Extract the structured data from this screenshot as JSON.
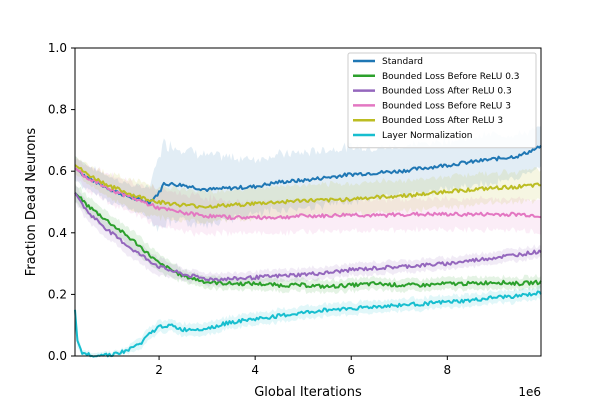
{
  "chart_data": {
    "type": "line",
    "xlabel": "Global Iterations",
    "ylabel": "Fraction Dead Neurons",
    "x_offset_label": "1e6",
    "xlim": [
      0.25,
      9.95
    ],
    "ylim": [
      0.0,
      1.0
    ],
    "xticks": [
      2,
      4,
      6,
      8
    ],
    "yticks": [
      0.0,
      0.2,
      0.4,
      0.6,
      0.8,
      1.0
    ],
    "xtick_labels": [
      "2",
      "4",
      "6",
      "8"
    ],
    "ytick_labels": [
      "0.0",
      "0.2",
      "0.4",
      "0.6",
      "0.8",
      "1.0"
    ],
    "grid": false,
    "legend_position": "top-right",
    "series": [
      {
        "name": "Standard",
        "color": "#1f77b4",
        "x": [
          0.25,
          0.5,
          1.0,
          1.5,
          1.8,
          2.0,
          2.1,
          2.5,
          3.0,
          3.5,
          4.0,
          4.5,
          5.0,
          5.5,
          6.0,
          6.5,
          7.0,
          7.5,
          8.0,
          8.5,
          9.0,
          9.5,
          9.95
        ],
        "y": [
          0.61,
          0.58,
          0.54,
          0.51,
          0.5,
          0.53,
          0.56,
          0.555,
          0.54,
          0.545,
          0.55,
          0.565,
          0.57,
          0.58,
          0.59,
          0.595,
          0.6,
          0.61,
          0.62,
          0.63,
          0.64,
          0.65,
          0.68
        ],
        "band": [
          0.04,
          0.04,
          0.04,
          0.04,
          0.05,
          0.12,
          0.13,
          0.12,
          0.11,
          0.1,
          0.09,
          0.09,
          0.09,
          0.09,
          0.09,
          0.08,
          0.08,
          0.08,
          0.08,
          0.08,
          0.08,
          0.07,
          0.06
        ]
      },
      {
        "name": "Bounded Loss Before ReLU 0.3",
        "color": "#2ca02c",
        "x": [
          0.25,
          0.5,
          1.0,
          1.5,
          2.0,
          2.5,
          3.0,
          3.5,
          4.0,
          4.5,
          5.0,
          5.5,
          6.0,
          6.5,
          7.0,
          7.5,
          8.0,
          8.5,
          9.0,
          9.5,
          9.95
        ],
        "y": [
          0.53,
          0.49,
          0.43,
          0.37,
          0.3,
          0.26,
          0.24,
          0.235,
          0.235,
          0.23,
          0.23,
          0.225,
          0.23,
          0.235,
          0.23,
          0.23,
          0.235,
          0.235,
          0.24,
          0.235,
          0.24
        ],
        "band": [
          0.03,
          0.03,
          0.03,
          0.03,
          0.03,
          0.02,
          0.02,
          0.02,
          0.02,
          0.02,
          0.02,
          0.02,
          0.02,
          0.02,
          0.02,
          0.02,
          0.02,
          0.02,
          0.02,
          0.02,
          0.02
        ]
      },
      {
        "name": "Bounded Loss After ReLU 0.3",
        "color": "#9467bd",
        "x": [
          0.25,
          0.5,
          1.0,
          1.5,
          2.0,
          2.5,
          3.0,
          3.5,
          4.0,
          4.5,
          5.0,
          5.5,
          6.0,
          6.5,
          7.0,
          7.5,
          8.0,
          8.5,
          9.0,
          9.5,
          9.95
        ],
        "y": [
          0.53,
          0.47,
          0.4,
          0.34,
          0.29,
          0.265,
          0.25,
          0.25,
          0.255,
          0.26,
          0.265,
          0.27,
          0.28,
          0.285,
          0.29,
          0.295,
          0.3,
          0.31,
          0.32,
          0.33,
          0.34
        ],
        "band": [
          0.03,
          0.03,
          0.03,
          0.03,
          0.03,
          0.02,
          0.02,
          0.02,
          0.02,
          0.02,
          0.02,
          0.02,
          0.02,
          0.02,
          0.02,
          0.02,
          0.02,
          0.02,
          0.02,
          0.02,
          0.02
        ]
      },
      {
        "name": "Bounded Loss Before ReLU 3",
        "color": "#e377c2",
        "x": [
          0.25,
          0.5,
          1.0,
          1.5,
          2.0,
          2.5,
          3.0,
          3.5,
          4.0,
          4.5,
          5.0,
          5.5,
          6.0,
          6.5,
          7.0,
          7.5,
          8.0,
          8.5,
          9.0,
          9.5,
          9.95
        ],
        "y": [
          0.61,
          0.58,
          0.54,
          0.51,
          0.48,
          0.465,
          0.455,
          0.45,
          0.45,
          0.45,
          0.455,
          0.455,
          0.46,
          0.455,
          0.46,
          0.46,
          0.46,
          0.46,
          0.46,
          0.46,
          0.455
        ],
        "band": [
          0.03,
          0.04,
          0.05,
          0.05,
          0.06,
          0.06,
          0.06,
          0.05,
          0.05,
          0.05,
          0.05,
          0.05,
          0.05,
          0.05,
          0.05,
          0.05,
          0.05,
          0.05,
          0.05,
          0.05,
          0.05
        ]
      },
      {
        "name": "Bounded Loss After ReLU 3",
        "color": "#bcbd22",
        "x": [
          0.25,
          0.5,
          1.0,
          1.5,
          2.0,
          2.5,
          3.0,
          3.5,
          4.0,
          4.5,
          5.0,
          5.5,
          6.0,
          6.5,
          7.0,
          7.5,
          8.0,
          8.5,
          9.0,
          9.5,
          9.95
        ],
        "y": [
          0.62,
          0.59,
          0.55,
          0.52,
          0.5,
          0.49,
          0.485,
          0.49,
          0.495,
          0.5,
          0.505,
          0.505,
          0.51,
          0.515,
          0.52,
          0.525,
          0.535,
          0.54,
          0.545,
          0.55,
          0.555
        ],
        "band": [
          0.03,
          0.03,
          0.04,
          0.05,
          0.05,
          0.05,
          0.05,
          0.05,
          0.05,
          0.05,
          0.05,
          0.05,
          0.05,
          0.05,
          0.05,
          0.05,
          0.05,
          0.05,
          0.05,
          0.05,
          0.05
        ]
      },
      {
        "name": "Layer Normalization",
        "color": "#17becf",
        "x": [
          0.25,
          0.3,
          0.4,
          0.5,
          0.7,
          1.0,
          1.3,
          1.6,
          1.8,
          2.0,
          2.2,
          2.5,
          3.0,
          3.5,
          4.0,
          4.5,
          5.0,
          5.5,
          6.0,
          6.5,
          7.0,
          7.5,
          8.0,
          8.5,
          9.0,
          9.5,
          9.95
        ],
        "y": [
          0.15,
          0.05,
          0.01,
          0.005,
          0.003,
          0.005,
          0.015,
          0.04,
          0.07,
          0.095,
          0.1,
          0.085,
          0.09,
          0.11,
          0.12,
          0.13,
          0.14,
          0.15,
          0.155,
          0.16,
          0.165,
          0.17,
          0.175,
          0.18,
          0.19,
          0.195,
          0.205
        ],
        "band": [
          0.02,
          0.02,
          0.01,
          0.01,
          0.01,
          0.01,
          0.01,
          0.02,
          0.02,
          0.02,
          0.02,
          0.02,
          0.02,
          0.02,
          0.02,
          0.02,
          0.02,
          0.02,
          0.02,
          0.02,
          0.02,
          0.02,
          0.02,
          0.02,
          0.02,
          0.02,
          0.02
        ]
      }
    ]
  }
}
